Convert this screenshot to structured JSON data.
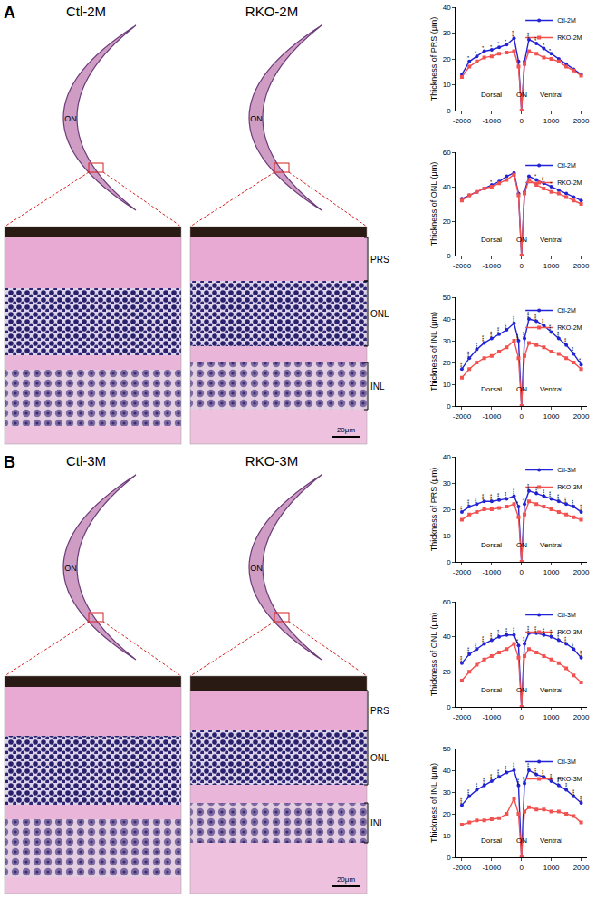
{
  "panels": [
    {
      "label": "A",
      "eyes": [
        {
          "title": "Ctl-2M",
          "label": "ON"
        },
        {
          "title": "RKO-2M",
          "label": "ON"
        }
      ],
      "layers": [
        "PRS",
        "ONL",
        "INL"
      ],
      "scale_bar": "20μm"
    },
    {
      "label": "B",
      "eyes": [
        {
          "title": "Ctl-3M",
          "label": "ON"
        },
        {
          "title": "RKO-3M",
          "label": "ON"
        }
      ],
      "layers": [
        "PRS",
        "ONL",
        "INL"
      ],
      "scale_bar": "20μm"
    }
  ],
  "chart_data": [
    {
      "type": "line",
      "y_label": "Thickness of PRS (μm)",
      "x": [
        -2000,
        -1750,
        -1500,
        -1250,
        -1000,
        -750,
        -500,
        -250,
        -100,
        0,
        100,
        250,
        500,
        750,
        1000,
        1250,
        1500,
        1750,
        2000
      ],
      "xlim": [
        -2200,
        2200
      ],
      "xticks": [
        -2000,
        -1000,
        0,
        1000,
        2000
      ],
      "ylim": [
        0,
        40
      ],
      "yticks": [
        0,
        10,
        20,
        30,
        40
      ],
      "legend": "upper right",
      "series": [
        {
          "name": "Ctl-2M",
          "color": "#2323d6",
          "marker": "circle",
          "line_style": "solid",
          "values": [
            14,
            19,
            21,
            23,
            23.5,
            24.5,
            25.5,
            28,
            19,
            0,
            19,
            27.5,
            26,
            24,
            22,
            20,
            18,
            16,
            14
          ]
        },
        {
          "name": "RKO-2M",
          "color": "#f2514f",
          "marker": "square",
          "line_style": "solid",
          "values": [
            13,
            17,
            19,
            20.5,
            21,
            22,
            22.5,
            23,
            17,
            0,
            18,
            23,
            22,
            20.5,
            20,
            19,
            17,
            15.5,
            13.5
          ]
        }
      ],
      "significance": [
        null,
        "*",
        "*",
        "*",
        "*",
        "*",
        "*",
        "***",
        null,
        null,
        null,
        "***",
        "**",
        "*",
        "*",
        null,
        null,
        null,
        null
      ],
      "annotations": [
        {
          "text": "Dorsal",
          "x": -1000
        },
        {
          "text": "ON",
          "x": 0
        },
        {
          "text": "Ventral",
          "x": 1000
        }
      ]
    },
    {
      "type": "line",
      "y_label": "Thickness of ONL (μm)",
      "x": [
        -2000,
        -1750,
        -1500,
        -1250,
        -1000,
        -750,
        -500,
        -250,
        -100,
        0,
        100,
        250,
        500,
        750,
        1000,
        1250,
        1500,
        1750,
        2000
      ],
      "xlim": [
        -2200,
        2200
      ],
      "xticks": [
        -2000,
        -1000,
        0,
        1000,
        2000
      ],
      "ylim": [
        0,
        60
      ],
      "yticks": [
        0,
        20,
        40,
        60
      ],
      "legend": "upper right",
      "series": [
        {
          "name": "Ctl-2M",
          "color": "#2323d6",
          "marker": "circle",
          "line_style": "solid",
          "values": [
            33,
            35,
            37,
            39,
            41,
            43,
            46,
            48,
            36,
            0,
            37,
            46,
            44,
            42,
            40,
            38,
            36,
            34,
            32
          ]
        },
        {
          "name": "RKO-2M",
          "color": "#f2514f",
          "marker": "square",
          "line_style": "solid",
          "values": [
            32,
            35,
            37,
            39,
            40,
            42,
            44,
            47,
            35,
            0,
            36,
            44,
            41,
            39,
            37,
            36,
            34,
            32,
            30
          ]
        }
      ],
      "significance": [
        null,
        null,
        null,
        null,
        "*",
        null,
        null,
        null,
        null,
        null,
        null,
        null,
        "*",
        "**",
        "*",
        null,
        null,
        null,
        null
      ],
      "annotations": [
        {
          "text": "Dorsal",
          "x": -1000
        },
        {
          "text": "ON",
          "x": 0
        },
        {
          "text": "Ventral",
          "x": 1000
        }
      ]
    },
    {
      "type": "line",
      "y_label": "Thickness of INL (μm)",
      "x": [
        -2000,
        -1750,
        -1500,
        -1250,
        -1000,
        -750,
        -500,
        -250,
        -100,
        0,
        100,
        250,
        500,
        750,
        1000,
        1250,
        1500,
        1750,
        2000
      ],
      "xlim": [
        -2200,
        2200
      ],
      "xticks": [
        -2000,
        -1000,
        0,
        1000,
        2000
      ],
      "ylim": [
        0,
        50
      ],
      "yticks": [
        0,
        10,
        20,
        30,
        40,
        50
      ],
      "legend": "upper right",
      "series": [
        {
          "name": "Ctl-2M",
          "color": "#2323d6",
          "marker": "circle",
          "line_style": "solid",
          "values": [
            17,
            22,
            26,
            29,
            31,
            33,
            35,
            38,
            30,
            0,
            31,
            40,
            39,
            37,
            34,
            31,
            28,
            24,
            19
          ]
        },
        {
          "name": "RKO-2M",
          "color": "#f2514f",
          "marker": "square",
          "line_style": "solid",
          "values": [
            13,
            17,
            20,
            22,
            23,
            25,
            27,
            30,
            22,
            0,
            23,
            29,
            28,
            27,
            25,
            24,
            22,
            20,
            17
          ]
        }
      ],
      "significance": [
        "**",
        "***",
        "***",
        "***",
        "***",
        "***",
        "***",
        "***",
        "***",
        null,
        "***",
        "***",
        "***",
        "***",
        "***",
        "***",
        "***",
        "***",
        "**"
      ],
      "annotations": [
        {
          "text": "Dorsal",
          "x": -1000
        },
        {
          "text": "ON",
          "x": 0
        },
        {
          "text": "Ventral",
          "x": 1000
        }
      ]
    },
    {
      "type": "line",
      "y_label": "Thickness of PRS (μm)",
      "x": [
        -2000,
        -1750,
        -1500,
        -1250,
        -1000,
        -750,
        -500,
        -250,
        -100,
        0,
        100,
        250,
        500,
        750,
        1000,
        1250,
        1500,
        1750,
        2000
      ],
      "xlim": [
        -2200,
        2200
      ],
      "xticks": [
        -2000,
        -1000,
        0,
        1000,
        2000
      ],
      "ylim": [
        0,
        40
      ],
      "yticks": [
        0,
        10,
        20,
        30,
        40
      ],
      "legend": "upper right",
      "series": [
        {
          "name": "Ctl-3M",
          "color": "#2323d6",
          "marker": "circle",
          "line_style": "solid",
          "values": [
            19,
            21,
            22,
            23,
            23,
            23.5,
            24,
            25,
            21,
            0,
            22,
            27,
            26,
            25,
            24,
            23,
            22,
            21,
            19
          ]
        },
        {
          "name": "RKO-3M",
          "color": "#f2514f",
          "marker": "square",
          "line_style": "solid",
          "values": [
            16,
            18,
            19,
            20,
            20,
            20.5,
            21,
            22,
            17,
            0,
            18,
            23,
            22,
            21,
            20,
            19,
            18,
            17,
            16
          ]
        }
      ],
      "significance": [
        "**",
        "***",
        "***",
        "***",
        "***",
        "***",
        "***",
        "***",
        "*",
        null,
        "*",
        "***",
        "***",
        "***",
        "***",
        "***",
        "***",
        "***",
        "***"
      ],
      "annotations": [
        {
          "text": "Dorsal",
          "x": -1000
        },
        {
          "text": "ON",
          "x": 0
        },
        {
          "text": "Ventral",
          "x": 1000
        }
      ]
    },
    {
      "type": "line",
      "y_label": "Thickness of ONL (μm)",
      "x": [
        -2000,
        -1750,
        -1500,
        -1250,
        -1000,
        -750,
        -500,
        -250,
        -100,
        0,
        100,
        250,
        500,
        750,
        1000,
        1250,
        1500,
        1750,
        2000
      ],
      "xlim": [
        -2200,
        2200
      ],
      "xticks": [
        -2000,
        -1000,
        0,
        1000,
        2000
      ],
      "ylim": [
        0,
        60
      ],
      "yticks": [
        0,
        20,
        40,
        60
      ],
      "legend": "upper right",
      "series": [
        {
          "name": "Ctl-3M",
          "color": "#2323d6",
          "marker": "circle",
          "line_style": "solid",
          "values": [
            25,
            30,
            33,
            36,
            38,
            40,
            41,
            41,
            35,
            0,
            36,
            42,
            42,
            41,
            40,
            38,
            36,
            33,
            28
          ]
        },
        {
          "name": "RKO-3M",
          "color": "#f2514f",
          "marker": "square",
          "line_style": "solid",
          "values": [
            15,
            20,
            24,
            27,
            29,
            31,
            33,
            36,
            28,
            0,
            29,
            33,
            31,
            29,
            27,
            25,
            22,
            18,
            14
          ]
        }
      ],
      "significance": [
        "***",
        "***",
        "***",
        "***",
        "***",
        "***",
        "***",
        "***",
        "**",
        null,
        "**",
        "***",
        "***",
        "***",
        "***",
        "***",
        "***",
        "***",
        "***"
      ],
      "annotations": [
        {
          "text": "Dorsal",
          "x": -1000
        },
        {
          "text": "ON",
          "x": 0
        },
        {
          "text": "Ventral",
          "x": 1000
        }
      ]
    },
    {
      "type": "line",
      "y_label": "Thickness of INL (μm)",
      "x": [
        -2000,
        -1750,
        -1500,
        -1250,
        -1000,
        -750,
        -500,
        -250,
        -100,
        0,
        100,
        250,
        500,
        750,
        1000,
        1250,
        1500,
        1750,
        2000
      ],
      "xlim": [
        -2200,
        2200
      ],
      "xticks": [
        -2000,
        -1000,
        0,
        1000,
        2000
      ],
      "ylim": [
        0,
        50
      ],
      "yticks": [
        0,
        10,
        20,
        30,
        40,
        50
      ],
      "legend": "upper right",
      "series": [
        {
          "name": "Ctl-3M",
          "color": "#2323d6",
          "marker": "circle",
          "line_style": "solid",
          "values": [
            24,
            28,
            31,
            33,
            35,
            37,
            39,
            40,
            33,
            0,
            34,
            40,
            38,
            37,
            35,
            33,
            31,
            28,
            25
          ]
        },
        {
          "name": "RKO-3M",
          "color": "#f2514f",
          "marker": "square",
          "line_style": "solid",
          "values": [
            15,
            16,
            17,
            17,
            17.5,
            18,
            20,
            27,
            20,
            0,
            21,
            23,
            22,
            22,
            21,
            21,
            20,
            19,
            16
          ]
        }
      ],
      "significance": [
        "***",
        "***",
        "***",
        "***",
        "***",
        "***",
        "***",
        "***",
        "***",
        null,
        "***",
        "***",
        "***",
        "***",
        "***",
        "***",
        "***",
        "***",
        "***"
      ],
      "annotations": [
        {
          "text": "Dorsal",
          "x": -1000
        },
        {
          "text": "ON",
          "x": 0
        },
        {
          "text": "Ventral",
          "x": 1000
        }
      ]
    }
  ]
}
